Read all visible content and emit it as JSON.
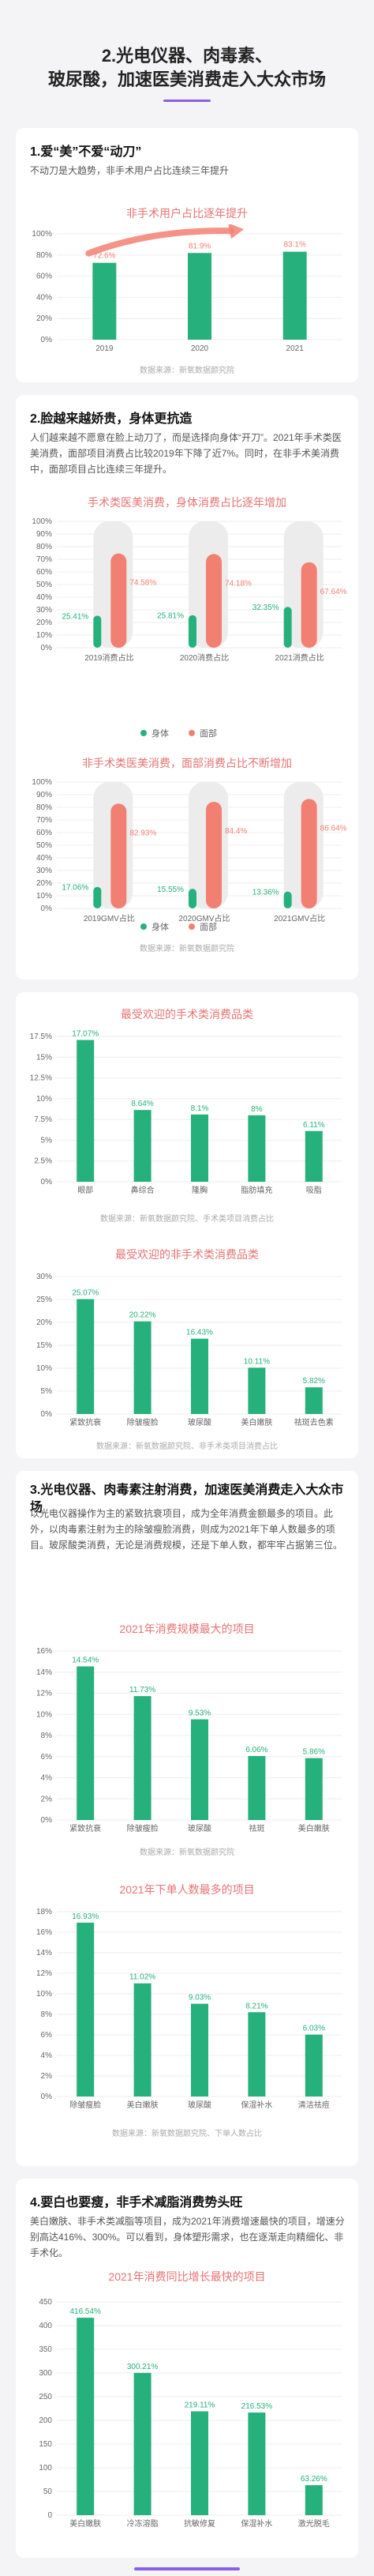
{
  "header": {
    "title_line1": "2.光电仪器、肉毒素、",
    "title_line2": "玻尿酸，加速医美消费走入大众市场"
  },
  "section1": {
    "heading": "1.爱“美”不爱“动刀”",
    "para": "不动刀是大趋势，非手术用户占比连续三年提升",
    "chart_title": "非手术用户占比逐年提升",
    "source": "数据来源：新氧数据颜究院"
  },
  "section2": {
    "heading": "2.脸越来越娇贵，身体更抗造",
    "para": "人们越来越不愿意在脸上动刀了，而是选择向身体“开刀”。2021年手术类医美消费，面部项目消费占比较2019年下降了近7%。同时，在非手术美消费中，面部项目占比连续三年提升。",
    "chart1_title": "手术类医美消费，身体消费占比逐年增加",
    "chart2_title": "非手术类医美消费，面部消费占比不断增加",
    "legend_body": "身体",
    "legend_face": "面部",
    "source": "数据来源：新氧数据颜究院"
  },
  "section3": {
    "chart1_title": "最受欢迎的手术类消费品类",
    "chart1_source": "数据来源：新氧数据颜究院、手术类项目消费占比",
    "chart2_title": "最受欢迎的非手术类消费品类",
    "chart2_source": "数据来源：新氧数据颜究院、非手术类项目消费占比"
  },
  "section4": {
    "heading": "3.光电仪器、肉毒素注射消费，加速医美消费走入大众市场",
    "para": "以光电仪器操作为主的紧致抗衰项目，成为全年消费金额最多的项目。此外，以肉毒素注射为主的除皱瘦脸消费，则成为2021年下单人数最多的项目。玻尿酸类消费，无论是消费规模，还是下单人数，都牢牢占据第三位。",
    "chart1_title": "2021年消费规模最大的项目",
    "chart1_source": "数据来源：新氧数据颜究院",
    "chart2_title": "2021年下单人数最多的项目",
    "chart2_source": "数据来源：新氧数据颜究院、下单人数占比"
  },
  "section5": {
    "heading": "4.要白也要瘦，非手术减脂消费势头旺",
    "para": "美白嫩肤、非手术类减脂等项目，成为2021年消费增速最快的项目，增速分别高达416%、300%。可以看到，身体塑形需求，也在逐渐走向精细化、非手术化。",
    "chart_title": "2021年消费同比增长最快的项目"
  },
  "colors": {
    "green": "#26b07c",
    "red": "#f28072",
    "purple": "#8a61e6",
    "track": "#ececec"
  },
  "chart_data": [
    {
      "type": "bar",
      "title": "非手术用户占比逐年提升",
      "categories": [
        "2019",
        "2020",
        "2021"
      ],
      "values": [
        72.6,
        81.9,
        83.1
      ],
      "value_labels": [
        "72.6%",
        "81.9%",
        "83.1%"
      ],
      "ylim": [
        0,
        100
      ],
      "yticks": [
        "0%",
        "20%",
        "40%",
        "60%",
        "80%",
        "100%"
      ]
    },
    {
      "type": "bar",
      "title": "手术类医美消费，身体消费占比逐年增加",
      "categories": [
        "2019消费占比",
        "2020消费占比",
        "2021消费占比"
      ],
      "series": [
        {
          "name": "身体",
          "values": [
            25.41,
            25.81,
            32.35
          ],
          "labels": [
            "25.41%",
            "25.81%",
            "32.35%"
          ]
        },
        {
          "name": "面部",
          "values": [
            74.58,
            74.18,
            67.64
          ],
          "labels": [
            "74.58%",
            "74.18%",
            "67.64%"
          ]
        }
      ],
      "ylim": [
        0,
        100
      ],
      "yticks": [
        "0%",
        "10%",
        "20%",
        "30%",
        "40%",
        "50%",
        "60%",
        "70%",
        "80%",
        "90%",
        "100%"
      ]
    },
    {
      "type": "bar",
      "title": "非手术类医美消费，面部消费占比不断增加",
      "categories": [
        "2019GMV占比",
        "2020GMV占比",
        "2021GMV占比"
      ],
      "series": [
        {
          "name": "身体",
          "values": [
            17.06,
            15.55,
            13.36
          ],
          "labels": [
            "17.06%",
            "15.55%",
            "13.36%"
          ]
        },
        {
          "name": "面部",
          "values": [
            82.93,
            84.4,
            86.64
          ],
          "labels": [
            "82.93%",
            "84.4%",
            "86.64%"
          ]
        }
      ],
      "ylim": [
        0,
        100
      ],
      "yticks": [
        "0%",
        "10%",
        "20%",
        "30%",
        "40%",
        "50%",
        "60%",
        "70%",
        "80%",
        "90%",
        "100%"
      ]
    },
    {
      "type": "bar",
      "title": "最受欢迎的手术类消费品类",
      "categories": [
        "眼部",
        "鼻综合",
        "隆胸",
        "脂肪填充",
        "吸脂"
      ],
      "values": [
        17.07,
        8.64,
        8.1,
        8,
        6.11
      ],
      "value_labels": [
        "17.07%",
        "8.64%",
        "8.1%",
        "8%",
        "6.11%"
      ],
      "ylim": [
        0,
        17.5
      ],
      "yticks": [
        "0%",
        "2.5%",
        "5%",
        "7.5%",
        "10%",
        "12.5%",
        "15%",
        "17.5%"
      ]
    },
    {
      "type": "bar",
      "title": "最受欢迎的非手术类消费品类",
      "categories": [
        "紧致抗衰",
        "除皱瘦脸",
        "玻尿酸",
        "美白嫩肤",
        "祛斑去色素"
      ],
      "values": [
        25.07,
        20.22,
        16.43,
        10.11,
        5.82
      ],
      "value_labels": [
        "25.07%",
        "20.22%",
        "16.43%",
        "10.11%",
        "5.82%"
      ],
      "ylim": [
        0,
        30
      ],
      "yticks": [
        "0%",
        "5%",
        "10%",
        "15%",
        "20%",
        "25%",
        "30%"
      ]
    },
    {
      "type": "bar",
      "title": "2021年消费规模最大的项目",
      "categories": [
        "紧致抗衰",
        "除皱瘦脸",
        "玻尿酸",
        "祛斑",
        "美白嫩肤"
      ],
      "values": [
        14.54,
        11.73,
        9.53,
        6.06,
        5.86
      ],
      "value_labels": [
        "14.54%",
        "11.73%",
        "9.53%",
        "6.06%",
        "5.86%"
      ],
      "ylim": [
        0,
        16
      ],
      "yticks": [
        "0%",
        "2%",
        "4%",
        "6%",
        "8%",
        "10%",
        "12%",
        "14%",
        "16%"
      ]
    },
    {
      "type": "bar",
      "title": "2021年下单人数最多的项目",
      "categories": [
        "除皱瘦脸",
        "美白嫩肤",
        "玻尿酸",
        "保湿补水",
        "清洁祛痘"
      ],
      "values": [
        16.93,
        11.02,
        9.03,
        8.21,
        6.03
      ],
      "value_labels": [
        "16.93%",
        "11.02%",
        "9.03%",
        "8.21%",
        "6.03%"
      ],
      "ylim": [
        0,
        18
      ],
      "yticks": [
        "0%",
        "2%",
        "4%",
        "6%",
        "8%",
        "10%",
        "12%",
        "14%",
        "16%",
        "18%"
      ]
    },
    {
      "type": "bar",
      "title": "2021年消费同比增长最快的项目",
      "categories": [
        "美白嫩肤",
        "冷冻溶脂",
        "抗敏修复",
        "保湿补水",
        "激光脱毛"
      ],
      "values": [
        416.54,
        300.21,
        219.11,
        216.53,
        63.26
      ],
      "value_labels": [
        "416.54%",
        "300.21%",
        "219.11%",
        "216.53%",
        "63.26%"
      ],
      "ylim": [
        0,
        450
      ],
      "yticks": [
        "0",
        "50",
        "100",
        "150",
        "200",
        "250",
        "300",
        "350",
        "400",
        "450"
      ]
    }
  ]
}
